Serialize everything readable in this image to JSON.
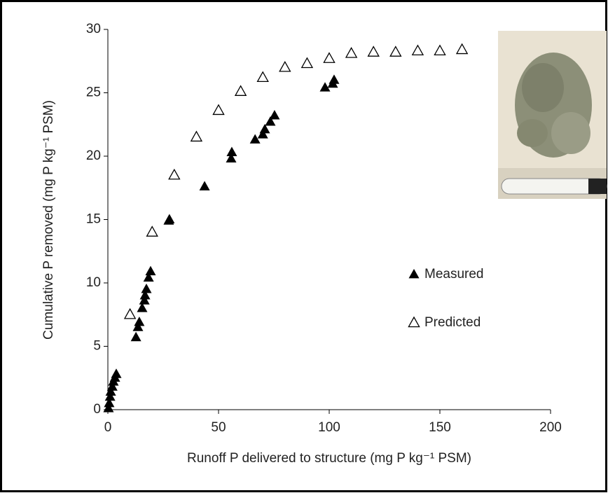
{
  "chart_data": {
    "type": "scatter",
    "xlabel": "Runoff P delivered to structure (mg P kg⁻¹ PSM)",
    "ylabel": "Cumulative P removed (mg P kg⁻¹ PSM)",
    "xlim": [
      0,
      200
    ],
    "xticks": [
      0,
      50,
      100,
      150,
      200
    ],
    "ylim": [
      0,
      30
    ],
    "yticks": [
      0,
      5,
      10,
      15,
      20,
      25,
      30
    ],
    "legend": "center right",
    "series": [
      {
        "name": "Measured",
        "color": "#000000",
        "marker": "filled-triangle",
        "x": [
          0.3,
          0.6,
          1,
          1.3,
          2,
          2.5,
          3.2,
          3.8,
          12.7,
          13.6,
          14.2,
          15.5,
          16.5,
          16.8,
          17.4,
          18.4,
          19.3,
          27.5,
          27.8,
          43.7,
          55.7,
          56,
          66.5,
          70,
          70.9,
          73.4,
          75.3,
          98.1,
          101.6,
          102.2
        ],
        "values": [
          0.1,
          0.5,
          1,
          1.4,
          1.8,
          2.2,
          2.5,
          2.8,
          5.7,
          6.5,
          6.9,
          8.0,
          8.6,
          9.0,
          9.5,
          10.4,
          10.9,
          14.9,
          15.0,
          17.6,
          19.8,
          20.3,
          21.3,
          21.7,
          22.1,
          22.7,
          23.2,
          25.4,
          25.7,
          26.0
        ]
      },
      {
        "name": "Predicted",
        "color": "#000000",
        "marker": "open-triangle",
        "x": [
          10,
          20,
          30,
          40,
          50,
          60,
          70,
          80,
          90,
          100,
          110,
          120,
          130,
          140,
          150,
          160
        ],
        "values": [
          7.5,
          14.0,
          18.5,
          21.5,
          23.6,
          25.1,
          26.2,
          27.0,
          27.3,
          27.7,
          28.1,
          28.2,
          28.2,
          28.3,
          28.3,
          28.4
        ]
      }
    ]
  }
}
